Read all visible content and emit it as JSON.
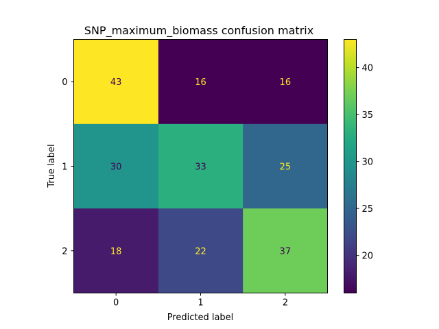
{
  "chart_data": {
    "type": "heatmap",
    "title": "SNP_maximum_biomass confusion matrix",
    "xlabel": "Predicted label",
    "ylabel": "True label",
    "x_categories": [
      "0",
      "1",
      "2"
    ],
    "y_categories": [
      "0",
      "1",
      "2"
    ],
    "values": [
      [
        43,
        16,
        16
      ],
      [
        30,
        33,
        25
      ],
      [
        18,
        22,
        37
      ]
    ],
    "colormap": "viridis",
    "colorbar": {
      "min": 16,
      "max": 43,
      "ticks": [
        "20",
        "25",
        "30",
        "35",
        "40"
      ]
    },
    "colors": {
      "dark_text": "#440154",
      "light_text": "#fde725"
    }
  }
}
